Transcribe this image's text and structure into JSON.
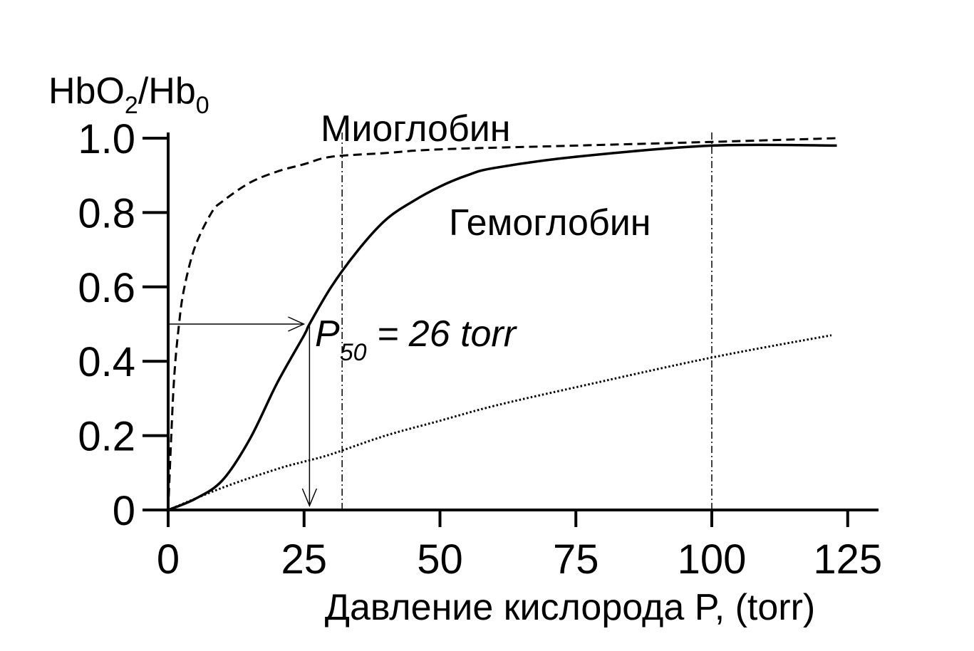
{
  "chart_data": {
    "type": "line",
    "ylabel_main": "HbO",
    "ylabel_sub1": "2",
    "ylabel_mid": "/Hb",
    "ylabel_sub2": "0",
    "xlabel": "Давление кислорода P, (torr)",
    "xlim": [
      0,
      125
    ],
    "ylim": [
      0,
      1.0
    ],
    "x_ticks": [
      0,
      25,
      50,
      75,
      100,
      125
    ],
    "x_tick_labels": [
      "0",
      "25",
      "50",
      "75",
      "100",
      "125"
    ],
    "y_ticks": [
      0,
      0.2,
      0.4,
      0.6,
      0.8,
      1.0
    ],
    "y_tick_labels": [
      "0",
      "0.2",
      "0.4",
      "0.6",
      "0.8",
      "1.0"
    ],
    "grid": false,
    "series": [
      {
        "name": "Миоглобин",
        "style": "dashed",
        "x": [
          0,
          1,
          2,
          3,
          5,
          8,
          10,
          15,
          20,
          25,
          30,
          40,
          50,
          75,
          100,
          123
        ],
        "y": [
          0,
          0.33,
          0.5,
          0.6,
          0.71,
          0.8,
          0.83,
          0.88,
          0.91,
          0.93,
          0.95,
          0.96,
          0.97,
          0.98,
          0.99,
          1.0
        ]
      },
      {
        "name": "Гемоглобин",
        "style": "solid",
        "x": [
          0,
          5,
          10,
          15,
          20,
          25,
          26,
          30,
          35,
          40,
          45,
          50,
          55,
          60,
          75,
          100,
          123
        ],
        "y": [
          0,
          0.03,
          0.08,
          0.19,
          0.34,
          0.47,
          0.5,
          0.6,
          0.7,
          0.78,
          0.83,
          0.87,
          0.9,
          0.92,
          0.95,
          0.98,
          0.98
        ]
      },
      {
        "style": "dotted",
        "x": [
          0,
          10,
          20,
          25,
          30,
          40,
          50,
          60,
          75,
          100,
          122
        ],
        "y": [
          0,
          0.06,
          0.11,
          0.13,
          0.15,
          0.2,
          0.24,
          0.28,
          0.33,
          0.41,
          0.47
        ]
      }
    ],
    "annotations": {
      "p50_text_main": "P",
      "p50_text_sub": "50",
      "p50_text_rest": " = 26 torr",
      "p50_x": 26,
      "p50_y": 0.5,
      "vlines_x": [
        32,
        100
      ]
    }
  }
}
